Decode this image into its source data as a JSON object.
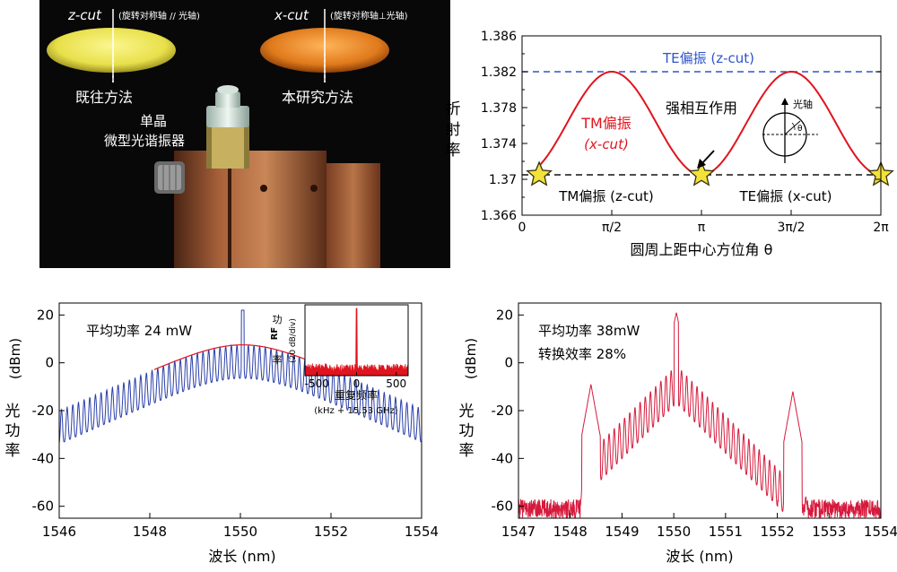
{
  "photo": {
    "zcut_label": "z-cut",
    "zcut_note": "(旋转对称轴 // 光轴)",
    "xcut_label": "x-cut",
    "xcut_note": "(旋转对称轴⊥光轴)",
    "left_caption": "既往方法",
    "right_caption": "本研究方法",
    "resonator_line1": "单晶",
    "resonator_line2": "微型光谐振器",
    "colors": {
      "zcut_disk": "#e8e04a",
      "xcut_disk": "#e07a1c",
      "background": "#0a0a0a",
      "mount": "#a85a30"
    }
  },
  "chart_data": [
    {
      "type": "line",
      "title": "",
      "xlabel": "圆周上距中心方位角 θ",
      "ylabel": "折射率",
      "ylim": [
        1.366,
        1.386
      ],
      "xlim": [
        0,
        6.2832
      ],
      "yticks": [
        "1.366",
        "1.37",
        "1.374",
        "1.378",
        "1.382",
        "1.386"
      ],
      "xticks": [
        "0",
        "π/2",
        "π",
        "3π/2",
        "2π"
      ],
      "xtick_values": [
        0,
        1.5708,
        3.1416,
        4.7124,
        6.2832
      ],
      "ytick_values": [
        1.366,
        1.37,
        1.374,
        1.378,
        1.382,
        1.386
      ],
      "series": [
        {
          "name": "TE偏振 (z-cut)",
          "style": "dashed",
          "color": "#2f55c8",
          "constant": 1.382
        },
        {
          "name": "TM偏振 (z-cut)",
          "style": "dashed",
          "color": "#111111",
          "constant": 1.3705
        },
        {
          "name": "TM偏振 (x-cut)",
          "style": "solid",
          "color": "#e0141e",
          "x": [
            0.3,
            0.6,
            0.9,
            1.2,
            1.5708,
            1.9,
            2.2,
            2.5,
            2.8,
            3.1416,
            3.5,
            3.8,
            4.1,
            4.4,
            4.7124,
            5.0,
            5.3,
            5.6,
            5.9,
            6.2832
          ],
          "y": [
            1.3705,
            1.3725,
            1.3765,
            1.3805,
            1.382,
            1.3805,
            1.3765,
            1.3725,
            1.3707,
            1.3705,
            1.3712,
            1.3755,
            1.3795,
            1.3818,
            1.382,
            1.3808,
            1.3768,
            1.3725,
            1.3707,
            1.3705
          ]
        }
      ],
      "markers": [
        {
          "label": "star",
          "x": 0.3,
          "y": 1.3705
        },
        {
          "label": "star",
          "x": 3.1416,
          "y": 1.3705
        },
        {
          "label": "star",
          "x": 6.2832,
          "y": 1.3705
        }
      ],
      "annotations": {
        "te_z": "TE偏振 (z-cut)",
        "tm_x_line1": "TM偏振",
        "tm_x_line2": "(x-cut)",
        "strong": "强相互作用",
        "optic_axis": "光轴",
        "theta": "θ",
        "tm_z": "TM偏振 (z-cut)",
        "te_x": "TE偏振 (x-cut)"
      },
      "ylabel_chars": [
        "折",
        "射",
        "率"
      ]
    },
    {
      "type": "line",
      "title": "",
      "xlabel": "波长 (nm)",
      "ylabel": "光功率 (dBm)",
      "ylabel_chars": [
        "光",
        "功",
        "率"
      ],
      "ylabel_unit": "(dBm)",
      "xlim": [
        1546,
        1554
      ],
      "ylim": [
        -65,
        25
      ],
      "xticks": [
        "1546",
        "1548",
        "1550",
        "1552",
        "1554"
      ],
      "xtick_values": [
        1546,
        1548,
        1550,
        1552,
        1554
      ],
      "yticks": [
        "20",
        "0",
        "-20",
        "-40",
        "-60"
      ],
      "ytick_values": [
        20,
        0,
        -20,
        -40,
        -60
      ],
      "annotation": "平均功率 24 mW",
      "series": [
        {
          "name": "spectrum",
          "color": "#2a3fa8",
          "center": 1550.05,
          "peak": 7.5,
          "width": 1.05,
          "comb_spacing": 0.125,
          "noise_floor": -60
        },
        {
          "name": "sech2 fit",
          "color": "#e0141e",
          "center": 1550.05,
          "peak": 7.5,
          "width": 1.05,
          "range": [
            1548.1,
            1552.2
          ]
        }
      ],
      "inset": {
        "ylabel_line1": "RF",
        "ylabel_line2": "功",
        "ylabel_line3": "率",
        "ylabel_unit": "(20 dB/div)",
        "xlabel_line1": "重复频率",
        "xlabel_line2": "(kHz + 15.53 GHz)",
        "xticks": [
          "-500",
          "0",
          "500"
        ],
        "xtick_values": [
          -500,
          0,
          500
        ],
        "xlim": [
          -650,
          650
        ],
        "color": "#e0141e"
      }
    },
    {
      "type": "line",
      "title": "",
      "xlabel": "波长 (nm)",
      "ylabel": "光功率 (dBm)",
      "ylabel_chars": [
        "光",
        "功",
        "率"
      ],
      "ylabel_unit": "(dBm)",
      "xlim": [
        1547,
        1554
      ],
      "ylim": [
        -65,
        25
      ],
      "xticks": [
        "1547",
        "1548",
        "1549",
        "1550",
        "1551",
        "1552",
        "1553",
        "1554"
      ],
      "xtick_values": [
        1547,
        1548,
        1549,
        1550,
        1551,
        1552,
        1553,
        1554
      ],
      "yticks": [
        "20",
        "0",
        "-20",
        "-40",
        "-60"
      ],
      "ytick_values": [
        20,
        0,
        -20,
        -40,
        -60
      ],
      "annotation_line1": "平均功率 38mW",
      "annotation_line2": "转换效率 28%",
      "series": [
        {
          "name": "spectrum",
          "color": "#d61a3c",
          "center": 1550.05,
          "peak": 21,
          "side_peaks": [
            [
              1548.4,
              -9
            ],
            [
              1552.3,
              -12
            ]
          ],
          "noise_floor": -60
        }
      ]
    }
  ]
}
